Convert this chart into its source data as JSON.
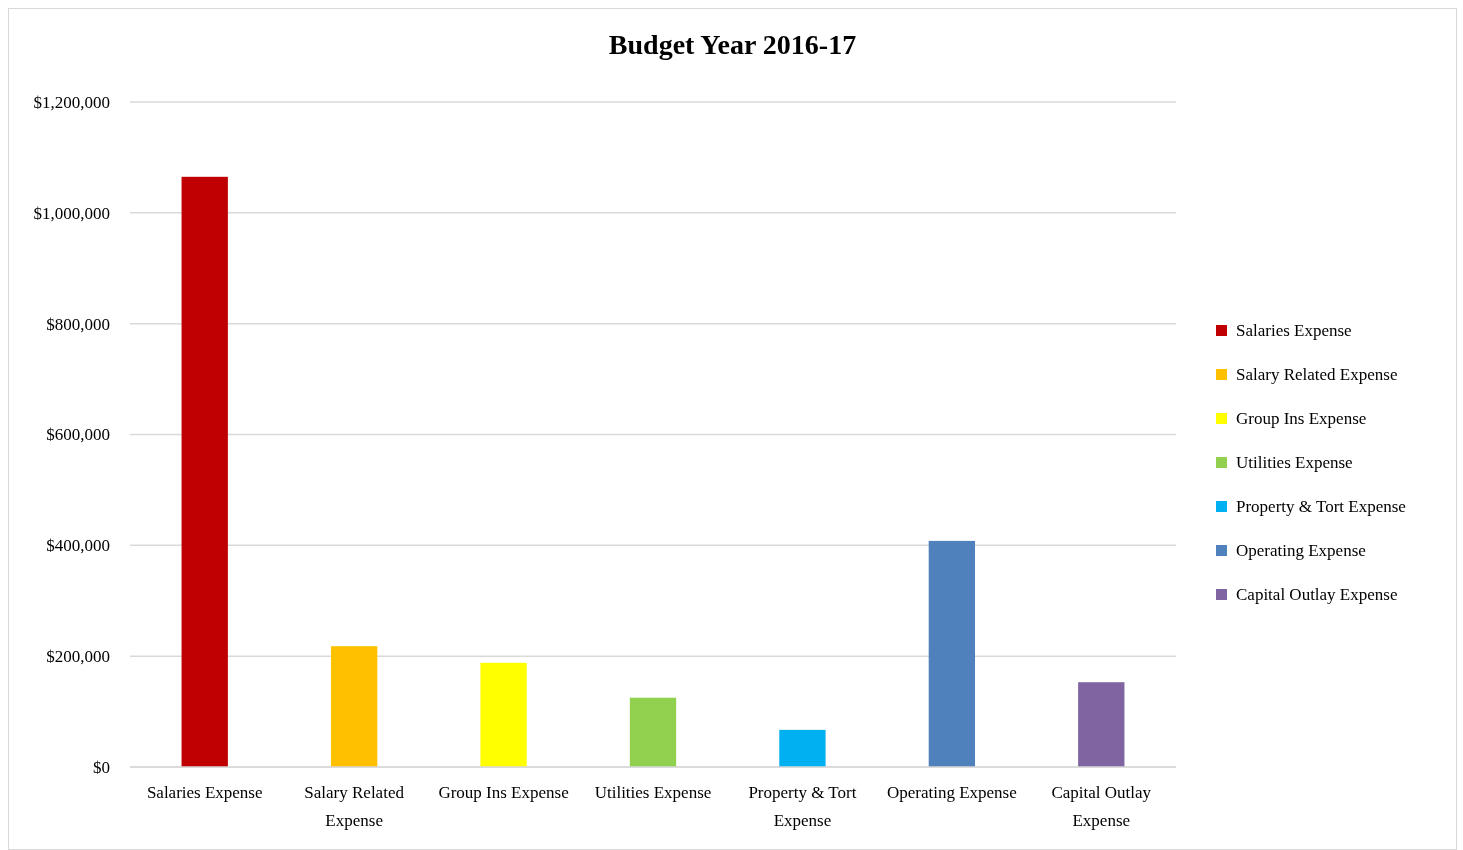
{
  "chart_data": {
    "type": "bar",
    "title": "Budget Year 2016-17",
    "categories": [
      "Salaries Expense",
      "Salary Related Expense",
      "Group Ins Expense",
      "Utilities Expense",
      "Property & Tort Expense",
      "Operating Expense",
      "Capital Outlay Expense"
    ],
    "series": [
      {
        "name": "Salaries Expense",
        "color": "#c00000",
        "values": [
          1065000,
          null,
          null,
          null,
          null,
          null,
          null
        ]
      },
      {
        "name": "Salary Related Expense",
        "color": "#ffc000",
        "values": [
          null,
          218000,
          null,
          null,
          null,
          null,
          null
        ]
      },
      {
        "name": "Group Ins Expense",
        "color": "#ffff00",
        "values": [
          null,
          null,
          188000,
          null,
          null,
          null,
          null
        ]
      },
      {
        "name": "Utilities Expense",
        "color": "#92d050",
        "values": [
          null,
          null,
          null,
          125000,
          null,
          null,
          null
        ]
      },
      {
        "name": "Property & Tort Expense",
        "color": "#00b0f0",
        "values": [
          null,
          null,
          null,
          null,
          67000,
          null,
          null
        ]
      },
      {
        "name": "Operating Expense",
        "color": "#4f81bd",
        "values": [
          null,
          null,
          null,
          null,
          null,
          408000,
          null
        ]
      },
      {
        "name": "Capital Outlay Expense",
        "color": "#8064a2",
        "values": [
          null,
          null,
          null,
          null,
          null,
          null,
          153000
        ]
      }
    ],
    "ylim": [
      0,
      1200000
    ],
    "yticks": [
      {
        "value": 0,
        "label": "$0"
      },
      {
        "value": 200000,
        "label": "$200,000"
      },
      {
        "value": 400000,
        "label": "$400,000"
      },
      {
        "value": 600000,
        "label": "$600,000"
      },
      {
        "value": 800000,
        "label": "$800,000"
      },
      {
        "value": 1000000,
        "label": "$1,000,000"
      },
      {
        "value": 1200000,
        "label": "$1,200,000"
      }
    ],
    "grid": "y",
    "legend": "right"
  }
}
